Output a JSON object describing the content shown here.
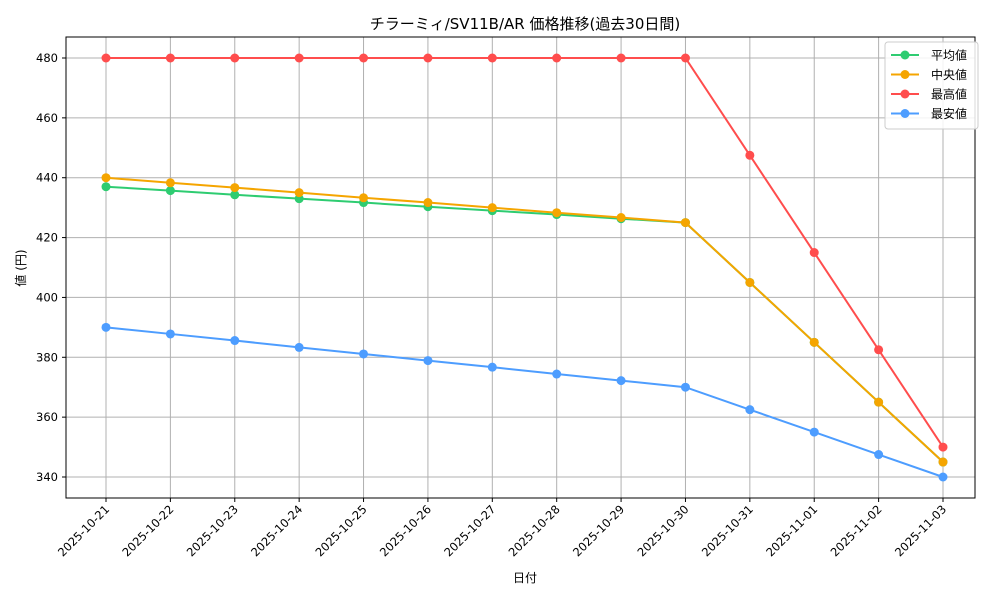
{
  "chart_data": {
    "type": "line",
    "title": "チラーミィ/SV11B/AR 価格推移(過去30日間)",
    "xlabel": "日付",
    "ylabel": "値 (円)",
    "ylim": [
      333,
      487
    ],
    "yticks": [
      340,
      360,
      380,
      400,
      420,
      440,
      460,
      480
    ],
    "grid": true,
    "legend_position": "upper right",
    "x": [
      "2025-10-21",
      "2025-10-22",
      "2025-10-23",
      "2025-10-24",
      "2025-10-25",
      "2025-10-26",
      "2025-10-27",
      "2025-10-28",
      "2025-10-29",
      "2025-10-30",
      "2025-10-31",
      "2025-11-01",
      "2025-11-02",
      "2025-11-03"
    ],
    "series": [
      {
        "name": "平均値",
        "color": "#2ecc71",
        "values": [
          437,
          435.7,
          434.3,
          433,
          431.7,
          430.3,
          429,
          427.7,
          426.3,
          425,
          405,
          385,
          365,
          345
        ]
      },
      {
        "name": "中央値",
        "color": "#f5a500",
        "values": [
          440,
          438.3,
          436.7,
          435,
          433.3,
          431.7,
          430,
          428.3,
          426.7,
          425,
          405,
          385,
          365,
          345
        ]
      },
      {
        "name": "最高値",
        "color": "#ff4d4d",
        "values": [
          480,
          480,
          480,
          480,
          480,
          480,
          480,
          480,
          480,
          480,
          447.5,
          415,
          382.5,
          350
        ]
      },
      {
        "name": "最安値",
        "color": "#4d9dff",
        "values": [
          390,
          387.8,
          385.6,
          383.3,
          381.1,
          378.9,
          376.7,
          374.4,
          372.2,
          370,
          362.5,
          355,
          347.5,
          340
        ]
      }
    ]
  }
}
